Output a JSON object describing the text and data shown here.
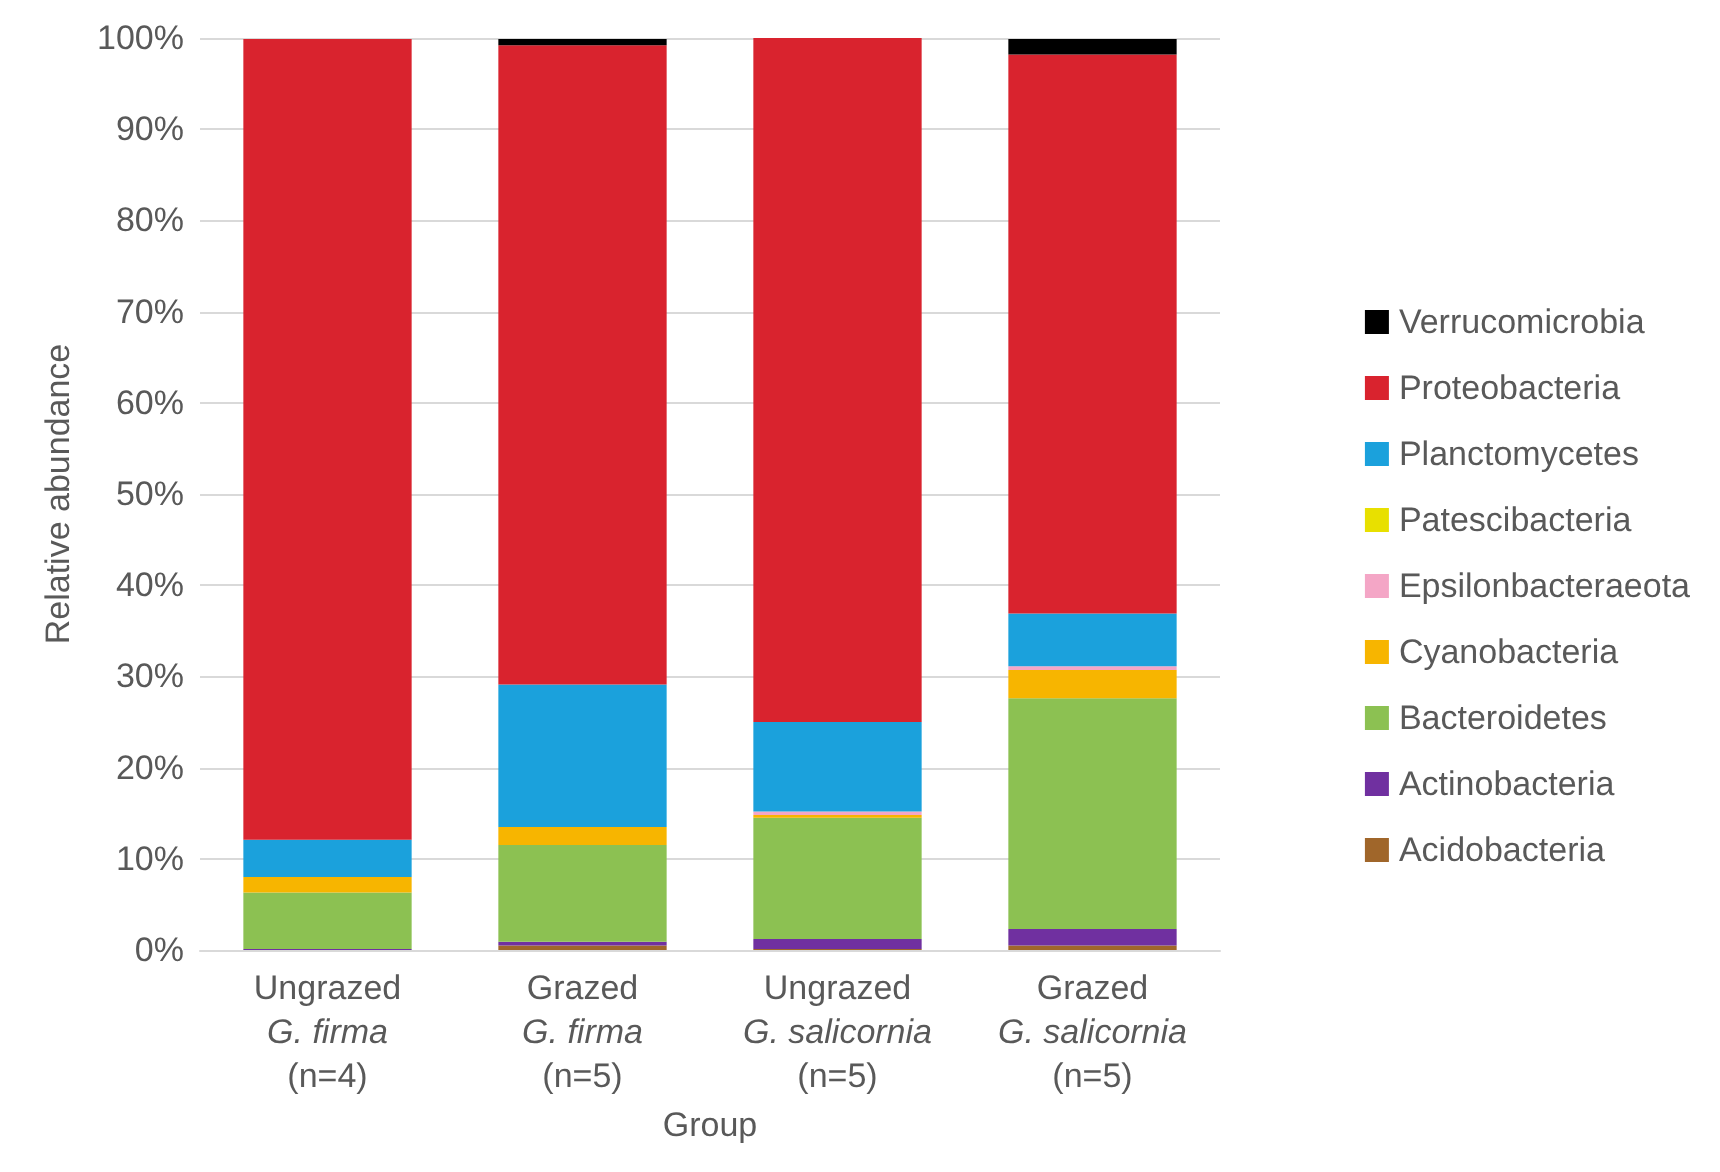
{
  "chart_data": {
    "type": "bar",
    "stacked": true,
    "xlabel": "Group",
    "ylabel": "Relative abundance",
    "categories": [
      "Ungrazed\nG. firma\n(n=4)",
      "Grazed\nG. firma\n(n=5)",
      "Ungrazed\nG. salicornia\n(n=5)",
      "Grazed\nG. salicornia\n(n=5)"
    ],
    "series": [
      {
        "name": "Acidobacteria",
        "color": "#a0662a",
        "values": [
          0,
          0.5,
          0.1,
          0.5
        ]
      },
      {
        "name": "Actinobacteria",
        "color": "#7030a0",
        "values": [
          0.1,
          0.4,
          1.1,
          1.8
        ]
      },
      {
        "name": "Bacteroidetes",
        "color": "#8cc152",
        "values": [
          6.2,
          10.6,
          13.3,
          25.3
        ]
      },
      {
        "name": "Cyanobacteria",
        "color": "#f7b500",
        "values": [
          1.7,
          2.0,
          0.3,
          3.1
        ]
      },
      {
        "name": "Epsilonbacteraeota",
        "color": "#f4a6c6",
        "values": [
          null,
          null,
          0.4,
          0.4
        ]
      },
      {
        "name": "Patescibacteria",
        "color": "#e8e000",
        "values": [
          0,
          0,
          0,
          null
        ]
      },
      {
        "name": "Planctomycetes",
        "color": "#1ba1dc",
        "values": [
          4.1,
          15.6,
          9.8,
          5.8
        ]
      },
      {
        "name": "Proteobacteria",
        "color": "#d9232e",
        "values": [
          87.8,
          70.1,
          75.0,
          61.3
        ]
      },
      {
        "name": "Verrucomicrobia",
        "color": "#000000",
        "values": [
          0,
          0.7,
          0,
          1.7
        ]
      }
    ],
    "ylim": [
      0,
      100
    ],
    "yticks": [
      {
        "value": 0,
        "label": "0%"
      },
      {
        "value": 10,
        "label": "10%"
      },
      {
        "value": 20,
        "label": "20%"
      },
      {
        "value": 30,
        "label": "30%"
      },
      {
        "value": 40,
        "label": "40%"
      },
      {
        "value": 50,
        "label": "50%"
      },
      {
        "value": 60,
        "label": "60%"
      },
      {
        "value": 70,
        "label": "70%"
      },
      {
        "value": 80,
        "label": "80%"
      },
      {
        "value": 90,
        "label": "90%"
      },
      {
        "value": 100,
        "label": "100%"
      }
    ],
    "grid": "y",
    "legend": "right"
  }
}
